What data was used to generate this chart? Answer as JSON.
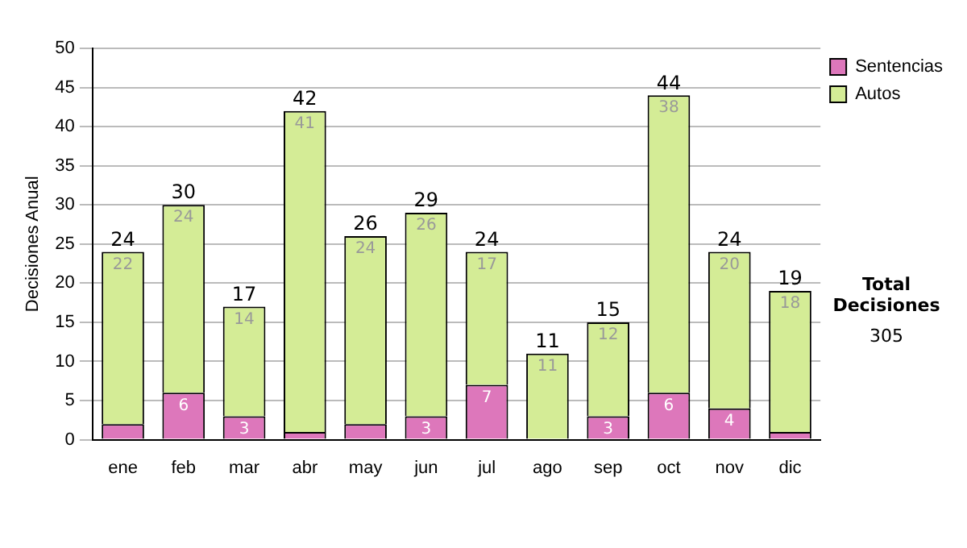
{
  "chart_data": {
    "type": "bar",
    "stacked": true,
    "ylabel": "Decisiones Anual",
    "categories": [
      "ene",
      "feb",
      "mar",
      "abr",
      "may",
      "jun",
      "jul",
      "ago",
      "sep",
      "oct",
      "nov",
      "dic"
    ],
    "series": [
      {
        "name": "Sentencias",
        "color": "#dd77bb",
        "values": [
          2,
          6,
          3,
          1,
          2,
          3,
          7,
          0,
          3,
          6,
          4,
          1
        ],
        "value_labels": [
          null,
          "6",
          "3",
          null,
          null,
          "3",
          "7",
          null,
          "3",
          "6",
          "4",
          null
        ]
      },
      {
        "name": "Autos",
        "color": "#d4ec96",
        "values": [
          22,
          24,
          14,
          41,
          24,
          26,
          17,
          11,
          12,
          38,
          20,
          18
        ],
        "value_labels": [
          "22",
          "24",
          "14",
          "41",
          "24",
          "26",
          "17",
          "11",
          "12",
          "38",
          "20",
          "18"
        ]
      }
    ],
    "totals": [
      "24",
      "30",
      "17",
      "42",
      "26",
      "29",
      "24",
      "11",
      "15",
      "44",
      "24",
      "19"
    ],
    "ylim": [
      0,
      50
    ],
    "yticks": [
      0,
      5,
      10,
      15,
      20,
      25,
      30,
      35,
      40,
      45,
      50
    ],
    "grid": "y",
    "legend": "right",
    "annotations": [
      "Total Decisiones",
      "305"
    ]
  }
}
